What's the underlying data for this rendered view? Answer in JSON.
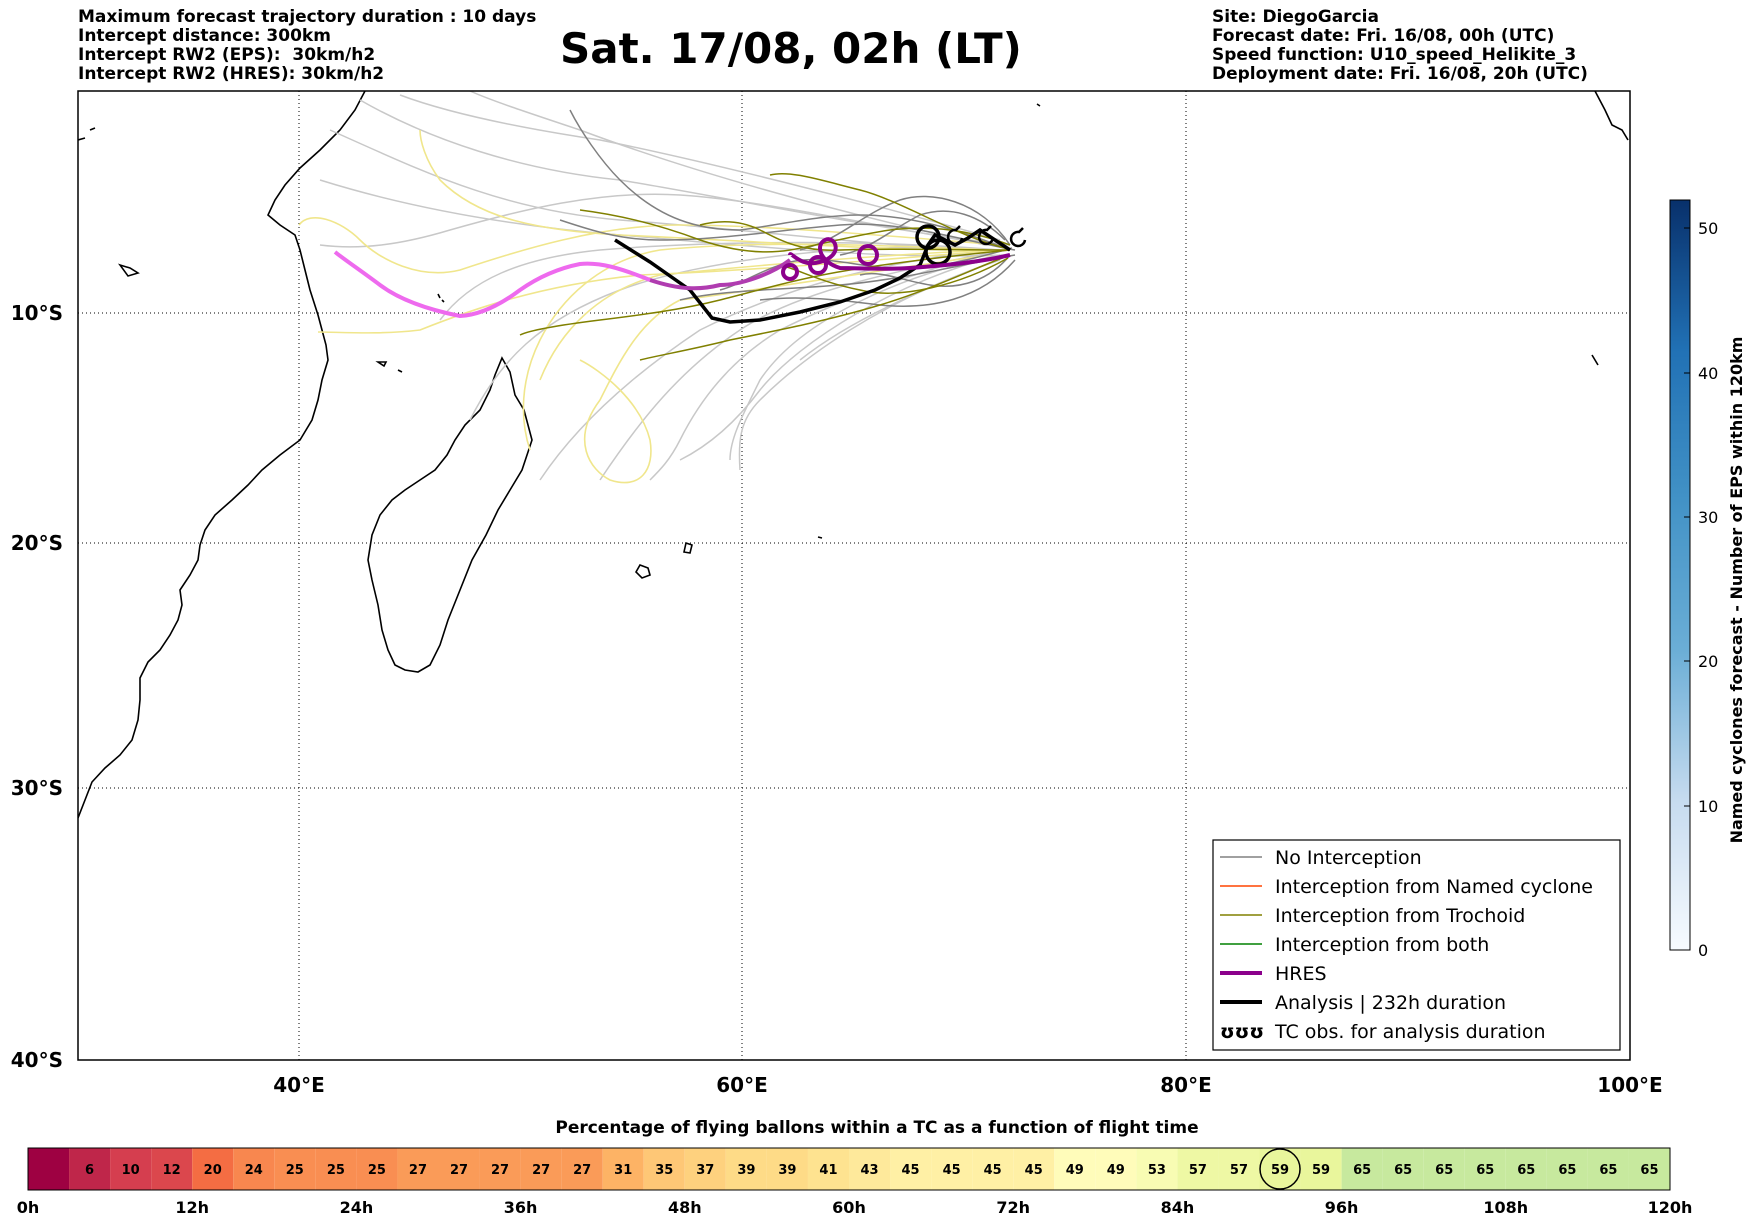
{
  "header_left": [
    "Maximum forecast trajectory duration : 10 days",
    "Intercept distance: 300km",
    "Intercept RW2 (EPS):  30km/h2",
    "Intercept RW2 (HRES): 30km/h2"
  ],
  "header_right": [
    "Site: DiegoGarcia",
    "Forecast date: Fri. 16/08, 00h (UTC)",
    "Speed function: U10_speed_Helikite_3",
    "Deployment date: Fri. 16/08, 20h (UTC)"
  ],
  "title": "Sat. 17/08, 02h (LT)",
  "map": {
    "lon_range": [
      30,
      100
    ],
    "lat_range": [
      -40,
      1
    ],
    "lon_ticks": [
      "40°E",
      "60°E",
      "80°E",
      "100°E"
    ],
    "lat_ticks": [
      "10°S",
      "20°S",
      "30°S",
      "40°S"
    ],
    "gridlines": "dotted"
  },
  "colorbar": {
    "label": "Named cyclones forecast - Number of EPS within 120km",
    "ticks": [
      "0",
      "10",
      "20",
      "30",
      "40",
      "50"
    ],
    "min": 0,
    "max": 52
  },
  "legend": {
    "items": [
      {
        "label": "No Interception",
        "color": "#808080"
      },
      {
        "label": "Interception from Named cyclone",
        "color": "#ff4500"
      },
      {
        "label": "Interception from Trochoid",
        "color": "#808000"
      },
      {
        "label": "Interception from both",
        "color": "#008000"
      },
      {
        "label": "HRES",
        "color": "#8b008b"
      },
      {
        "label": "Analysis | 232h duration",
        "color": "#000000"
      },
      {
        "label": "TC obs. for analysis duration",
        "color": "#000000",
        "symbol": "ʊʊʊ"
      }
    ]
  },
  "bottom": {
    "title": "Percentage of flying ballons within a TC as a function of flight time",
    "values": [
      "",
      "6",
      "10",
      "12",
      "20",
      "24",
      "25",
      "25",
      "25",
      "27",
      "27",
      "27",
      "27",
      "27",
      "31",
      "35",
      "37",
      "39",
      "39",
      "41",
      "43",
      "45",
      "45",
      "45",
      "45",
      "49",
      "49",
      "53",
      "57",
      "57",
      "59",
      "59",
      "65",
      "65",
      "65",
      "65",
      "65",
      "65",
      "65",
      "65"
    ],
    "highlight_index": 30,
    "time_ticks": [
      "0h",
      "12h",
      "24h",
      "36h",
      "48h",
      "60h",
      "72h",
      "84h",
      "96h",
      "108h",
      "120h"
    ]
  }
}
